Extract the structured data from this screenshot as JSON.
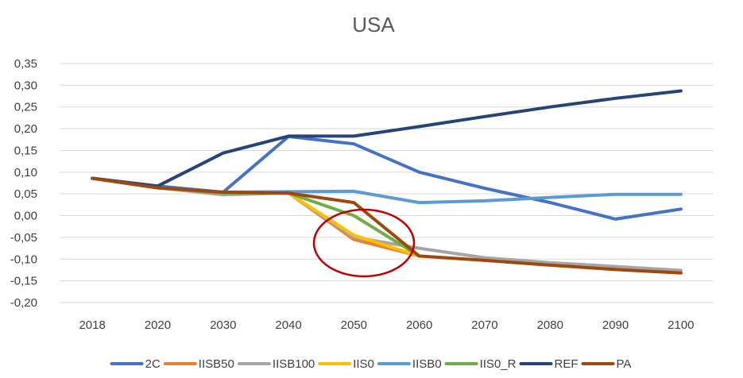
{
  "chart_data": {
    "type": "line",
    "title": "USA",
    "x": [
      "2018",
      "2020",
      "2030",
      "2040",
      "2050",
      "2060",
      "2070",
      "2080",
      "2090",
      "2100"
    ],
    "ylim": [
      -0.2,
      0.35
    ],
    "yticks": [
      0.35,
      0.3,
      0.25,
      0.2,
      0.15,
      0.1,
      0.05,
      0.0,
      -0.05,
      -0.1,
      -0.15,
      -0.2
    ],
    "ytick_labels": [
      "0,35",
      "0,30",
      "0,25",
      "0,20",
      "0,15",
      "0,10",
      "0,05",
      "0,00",
      "-0,05",
      "-0,10",
      "-0,15",
      "-0,20"
    ],
    "grid": true,
    "legend_position": "bottom",
    "annotation": "red ellipse highlighting 2050 divergence",
    "series": [
      {
        "name": "2C",
        "color": "#4472C4",
        "values": [
          0.086,
          0.068,
          0.054,
          0.182,
          0.165,
          0.1,
          0.063,
          0.03,
          -0.008,
          0.015
        ]
      },
      {
        "name": "IISB50",
        "color": "#ED7D31",
        "values": [
          0.086,
          0.064,
          0.052,
          0.052,
          -0.055,
          -0.093,
          null,
          null,
          null,
          null
        ]
      },
      {
        "name": "IISB100",
        "color": "#A5A5A5",
        "values": [
          0.086,
          0.064,
          0.048,
          0.052,
          -0.05,
          -0.075,
          -0.097,
          -0.108,
          -0.117,
          -0.126
        ]
      },
      {
        "name": "IIS0",
        "color": "#FFC000",
        "values": [
          0.086,
          0.064,
          0.052,
          0.052,
          -0.045,
          -0.093,
          null,
          null,
          null,
          null
        ]
      },
      {
        "name": "IISB0",
        "color": "#5B9BD5",
        "values": [
          0.086,
          0.064,
          0.054,
          0.055,
          0.056,
          0.03,
          0.034,
          0.042,
          0.049,
          0.049
        ]
      },
      {
        "name": "IIS0_R",
        "color": "#70AD47",
        "values": [
          0.086,
          0.064,
          0.052,
          0.052,
          0.0,
          -0.093,
          null,
          null,
          null,
          null
        ]
      },
      {
        "name": "REF",
        "color": "#264478",
        "values": [
          0.086,
          0.068,
          0.144,
          0.183,
          0.183,
          0.205,
          0.228,
          0.25,
          0.27,
          0.287
        ]
      },
      {
        "name": "PA",
        "color": "#9E480E",
        "values": [
          0.086,
          0.064,
          0.054,
          0.052,
          0.03,
          -0.093,
          -0.103,
          -0.114,
          -0.124,
          -0.132
        ]
      }
    ]
  }
}
